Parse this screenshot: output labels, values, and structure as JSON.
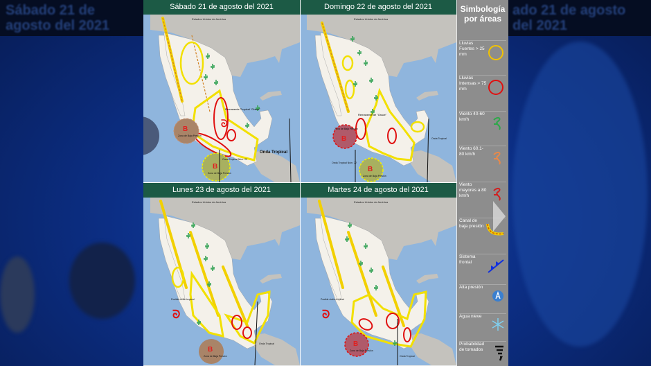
{
  "background": {
    "title": "Sábado 21 de agosto del 2021",
    "title_right": "ado 21 de agosto del 2021"
  },
  "panels": [
    {
      "title": "Sábado 21 de agosto del 2021",
      "country_label": "Estados Unidos de América",
      "labels": {
        "low1": "Zona de Baja Presión",
        "low2": "Zona de Baja Presión",
        "wave1": "Onda Tropical Núm. 22",
        "wave2": "Onda Tropical",
        "remnant": "Remanente Tropical \"Grace\""
      }
    },
    {
      "title": "Domingo 22 de agosto del 2021",
      "country_label": "Estados Unidos de América",
      "labels": {
        "low1": "Zona de Baja Presión",
        "low2": "Zona de Baja Presión",
        "wave1": "Onda Tropical Núm. 22",
        "wave2": "Onda Tropical",
        "remnant": "Remanente de \"Grace\""
      }
    },
    {
      "title": "Lunes 23 de agosto del 2021",
      "country_label": "Estados Unidos de América",
      "labels": {
        "low1": "Zona de Baja Presión",
        "wave1": "Onda Tropical",
        "cyclone": "Posible ciclón tropical"
      }
    },
    {
      "title": "Martes 24 de agosto del 2021",
      "country_label": "Estados Unidos de América",
      "labels": {
        "low1": "Zona de Baja Presión",
        "wave1": "Onda Tropical",
        "cyclone": "Posible ciclón tropical"
      }
    }
  ],
  "legend": {
    "title_line1": "Simbología",
    "title_line2": "por áreas",
    "items": [
      {
        "label": "Lluvias Fuertes > 25 mm",
        "icon": "yellow-circle",
        "color": "#f2c200"
      },
      {
        "label": "Lluvias Intensas > 75 mm",
        "icon": "red-circle",
        "color": "#e01010"
      },
      {
        "label": "Viento 40-60 km/h",
        "icon": "wind-green",
        "color": "#2ea84a"
      },
      {
        "label": "Viento 60.1-80 km/h",
        "icon": "wind-orange",
        "color": "#e8894a"
      },
      {
        "label": "Viento mayores a 80 km/h",
        "icon": "wind-red",
        "color": "#d02020"
      },
      {
        "label": "Canal de baja presión",
        "icon": "trough",
        "color": "#f0a000"
      },
      {
        "label": "Sistema frontal",
        "icon": "cold-front",
        "color": "#1030e0"
      },
      {
        "label": "Alta presión",
        "icon": "high-pressure",
        "color": "#3a7fd0"
      },
      {
        "label": "Agua nieve",
        "icon": "snowflake",
        "color": "#7fd0f0"
      },
      {
        "label": "Probabilidad de tornados",
        "icon": "tornado",
        "color": "#111111"
      }
    ]
  },
  "colors": {
    "ocean": "#8fb5dd",
    "land": "#f4f1ea",
    "neighbor": "#b9b7b2",
    "title_bar": "#1c5a45",
    "legend_bg": "#8d8d8d"
  }
}
